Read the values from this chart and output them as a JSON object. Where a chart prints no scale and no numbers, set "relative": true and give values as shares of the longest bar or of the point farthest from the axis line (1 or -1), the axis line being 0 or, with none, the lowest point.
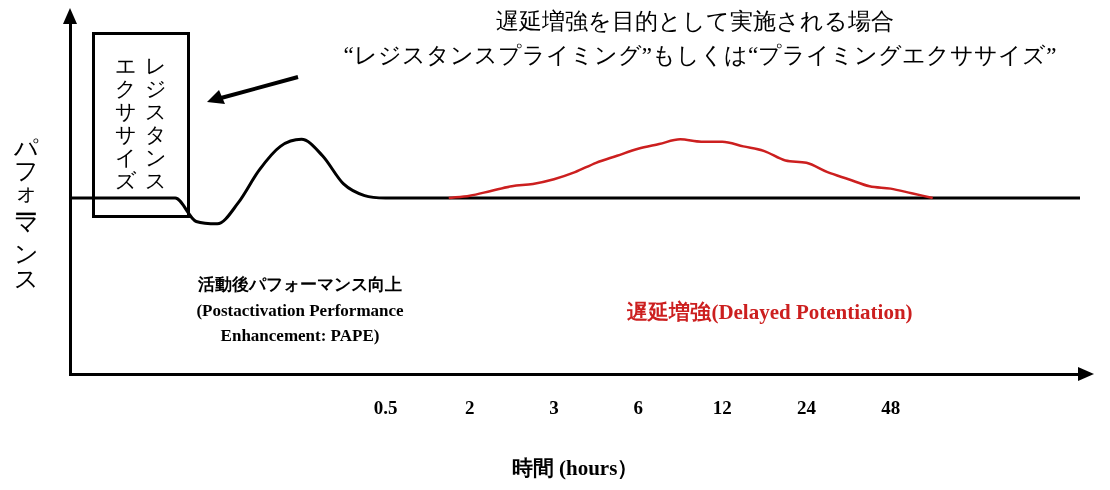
{
  "chart_data": {
    "type": "line",
    "relative": true,
    "title": "遅延増強を目的として実施される場合",
    "subtitle": "“レジスタンスプライミング”もしくは“プライミングエクササイズ”",
    "xlabel": "時間 (hours）",
    "ylabel": "パフォーマンス",
    "annotations": [
      "レジスタンスエクササイズ"
    ],
    "legend": false,
    "grid": false,
    "marker": "none",
    "tick_labels": "x",
    "categories": [
      null,
      null,
      null,
      null,
      null,
      null,
      null,
      null,
      null,
      null,
      null,
      null,
      null,
      null,
      null,
      "0.5",
      null,
      null,
      null,
      "2",
      null,
      null,
      null,
      "3",
      null,
      null,
      null,
      "6",
      null,
      null,
      null,
      "12",
      null,
      null,
      null,
      "24",
      null,
      null,
      null,
      "48",
      null,
      null,
      null,
      null,
      null,
      null,
      null,
      null,
      null
    ],
    "series": [
      {
        "name": "活動後パフォーマンス向上 (Postactivation Performance Enhancement: PAPE)",
        "color": "#000000",
        "values": [
          0.75,
          0.75,
          0.75,
          0.75,
          0.75,
          0.75,
          0.65,
          0.64,
          0.73,
          0.87,
          0.97,
          1.0,
          0.93,
          0.81,
          0.76,
          0.75,
          0.75,
          0.75,
          0.75,
          0.75,
          0.75,
          0.75,
          0.75,
          0.75,
          0.75,
          0.75,
          0.75,
          0.75,
          0.75,
          0.75,
          0.75,
          0.75,
          0.75,
          0.75,
          0.75,
          0.75,
          0.75,
          0.75,
          0.75,
          0.75,
          0.75,
          0.75,
          0.75,
          0.75,
          0.75,
          0.75,
          0.75,
          0.75,
          0.75
        ]
      },
      {
        "name": "遅延増強(Delayed Potentiation)",
        "color": "#cc1f1f",
        "values": [
          null,
          null,
          null,
          null,
          null,
          null,
          null,
          null,
          null,
          null,
          null,
          null,
          null,
          null,
          null,
          null,
          null,
          null,
          0.75,
          0.76,
          0.78,
          0.8,
          0.81,
          0.83,
          0.86,
          0.9,
          0.93,
          0.96,
          0.98,
          1.0,
          0.99,
          0.99,
          0.97,
          0.95,
          0.91,
          0.9,
          0.86,
          0.83,
          0.8,
          0.79,
          0.77,
          0.75,
          null,
          null,
          null,
          null,
          null,
          null,
          null
        ]
      }
    ]
  }
}
